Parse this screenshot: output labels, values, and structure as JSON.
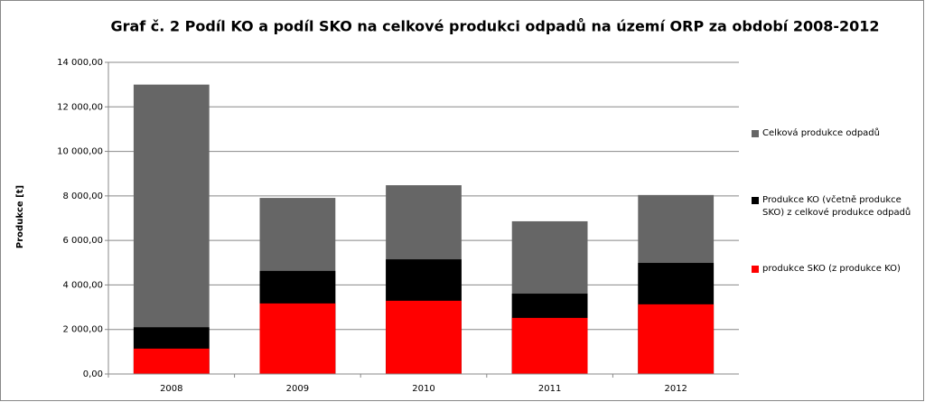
{
  "chart_data": {
    "type": "bar",
    "title": "Graf č. 2 Podíl KO a podíl SKO na celkové produkci odpadů na území ORP za období 2008-2012",
    "y_label": "Produkce [t]",
    "categories": [
      "2008",
      "2009",
      "2010",
      "2011",
      "2012"
    ],
    "series": [
      {
        "name": "Celková produkce odpadů",
        "color": "#666666",
        "values": [
          13000,
          7910,
          8480,
          6860,
          8040
        ]
      },
      {
        "name": "Produkce KO (včetně produkce SKO) z celkové produkce odpadů",
        "color": "#000000",
        "values": [
          2100,
          4630,
          5150,
          3610,
          4990
        ]
      },
      {
        "name": "produkce SKO (z produkce KO)",
        "color": "#ff0000",
        "values": [
          1140,
          3170,
          3290,
          2520,
          3130
        ]
      }
    ],
    "ylim": [
      0,
      14000
    ],
    "yticks": [
      {
        "value": 0,
        "label": "0,00"
      },
      {
        "value": 2000,
        "label": "2 000,00"
      },
      {
        "value": 4000,
        "label": "4 000,00"
      },
      {
        "value": 6000,
        "label": "6 000,00"
      },
      {
        "value": 8000,
        "label": "8 000,00"
      },
      {
        "value": 10000,
        "label": "10 000,00"
      },
      {
        "value": 12000,
        "label": "12 000,00"
      },
      {
        "value": 14000,
        "label": "14 000,00"
      }
    ],
    "grid": true,
    "legend": "right"
  }
}
